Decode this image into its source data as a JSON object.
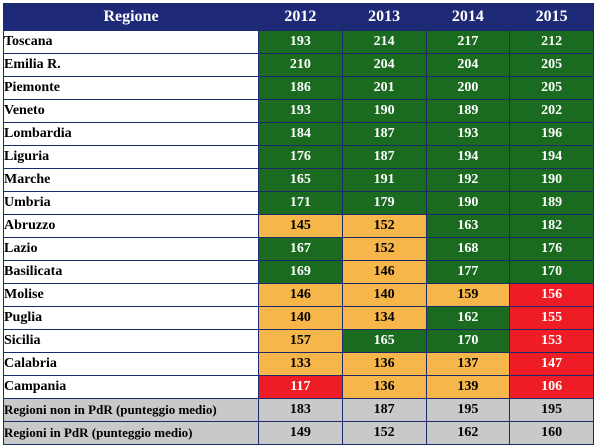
{
  "table": {
    "header": [
      "Regione",
      "2012",
      "2013",
      "2014",
      "2015"
    ],
    "rows": [
      {
        "region": "Toscana",
        "values": [
          "193",
          "214",
          "217",
          "212"
        ],
        "colors": [
          "green",
          "green",
          "green",
          "green"
        ]
      },
      {
        "region": "Emilia R.",
        "values": [
          "210",
          "204",
          "204",
          "205"
        ],
        "colors": [
          "green",
          "green",
          "green",
          "green"
        ]
      },
      {
        "region": "Piemonte",
        "values": [
          "186",
          "201",
          "200",
          "205"
        ],
        "colors": [
          "green",
          "green",
          "green",
          "green"
        ]
      },
      {
        "region": "Veneto",
        "values": [
          "193",
          "190",
          "189",
          "202"
        ],
        "colors": [
          "green",
          "green",
          "green",
          "green"
        ]
      },
      {
        "region": "Lombardia",
        "values": [
          "184",
          "187",
          "193",
          "196"
        ],
        "colors": [
          "green",
          "green",
          "green",
          "green"
        ]
      },
      {
        "region": "Liguria",
        "values": [
          "176",
          "187",
          "194",
          "194"
        ],
        "colors": [
          "green",
          "green",
          "green",
          "green"
        ]
      },
      {
        "region": "Marche",
        "values": [
          "165",
          "191",
          "192",
          "190"
        ],
        "colors": [
          "green",
          "green",
          "green",
          "green"
        ]
      },
      {
        "region": "Umbria",
        "values": [
          "171",
          "179",
          "190",
          "189"
        ],
        "colors": [
          "green",
          "green",
          "green",
          "green"
        ]
      },
      {
        "region": "Abruzzo",
        "values": [
          "145",
          "152",
          "163",
          "182"
        ],
        "colors": [
          "orange",
          "orange",
          "green",
          "green"
        ]
      },
      {
        "region": "Lazio",
        "values": [
          "167",
          "152",
          "168",
          "176"
        ],
        "colors": [
          "green",
          "orange",
          "green",
          "green"
        ]
      },
      {
        "region": "Basilicata",
        "values": [
          "169",
          "146",
          "177",
          "170"
        ],
        "colors": [
          "green",
          "orange",
          "green",
          "green"
        ]
      },
      {
        "region": "Molise",
        "values": [
          "146",
          "140",
          "159",
          "156"
        ],
        "colors": [
          "orange",
          "orange",
          "orange",
          "red"
        ]
      },
      {
        "region": "Puglia",
        "values": [
          "140",
          "134",
          "162",
          "155"
        ],
        "colors": [
          "orange",
          "orange",
          "green",
          "red"
        ]
      },
      {
        "region": "Sicilia",
        "values": [
          "157",
          "165",
          "170",
          "153"
        ],
        "colors": [
          "orange",
          "green",
          "green",
          "red"
        ]
      },
      {
        "region": "Calabria",
        "values": [
          "133",
          "136",
          "137",
          "147"
        ],
        "colors": [
          "orange",
          "orange",
          "orange",
          "red"
        ]
      },
      {
        "region": "Campania",
        "values": [
          "117",
          "136",
          "139",
          "106"
        ],
        "colors": [
          "red",
          "orange",
          "orange",
          "red"
        ]
      }
    ],
    "summary": [
      {
        "region": "Regioni non in PdR (punteggio medio)",
        "values": [
          "183",
          "187",
          "195",
          "195"
        ]
      },
      {
        "region": "Regioni in PdR (punteggio medio)",
        "values": [
          "149",
          "152",
          "162",
          "160"
        ]
      }
    ],
    "palette": {
      "green": "#1a6b1f",
      "orange": "#f7b64a",
      "red": "#ee1c25",
      "header": "#1e2a78",
      "summary": "#c9c9c9"
    }
  }
}
